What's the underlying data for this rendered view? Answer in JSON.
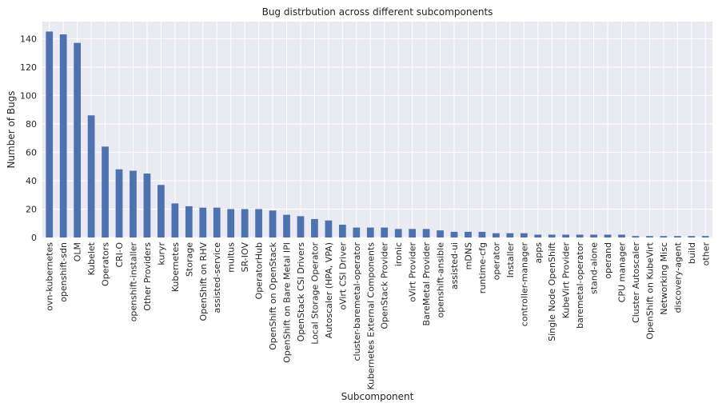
{
  "chart_data": {
    "type": "bar",
    "title": "Bug distrbution across different subcomponents",
    "xlabel": "Subcomponent",
    "ylabel": "Number of Bugs",
    "ylim": [
      0,
      152
    ],
    "yticks": [
      0,
      20,
      40,
      60,
      80,
      100,
      120,
      140
    ],
    "grid": true,
    "bar_color": "#4c72b0",
    "background_color": "#eaeaf2",
    "categories": [
      "ovn-kubernetes",
      "openshift-sdn",
      "OLM",
      "Kubelet",
      "Operators",
      "CRI-O",
      "openshift-installer",
      "Other Providers",
      "kuryr",
      "Kubernetes",
      "Storage",
      "OpenShift on RHV",
      "assisted-service",
      "multus",
      "SR-IOV",
      "OperatorHub",
      "OpenShift on OpenStack",
      "OpenShift on Bare Metal IPI",
      "OpenStack CSI Drivers",
      "Local Storage Operator",
      "Autoscaler (HPA, VPA)",
      "oVirt CSI Driver",
      "cluster-baremetal-operator",
      "Kubernetes External Components",
      "OpenStack Provider",
      "ironic",
      "oVirt Provider",
      "BareMetal Provider",
      "openshift-ansible",
      "assisted-ui",
      "mDNS",
      "runtime-cfg",
      "operator",
      "Installer",
      "controller-manager",
      "apps",
      "Single Node OpenShift",
      "KubeVirt Provider",
      "baremetal-operator",
      "stand-alone",
      "operand",
      "CPU manager",
      "Cluster Autoscaler",
      "OpenShift on KubeVirt",
      "Networking Misc",
      "discovery-agent",
      "build",
      "other"
    ],
    "values": [
      145,
      143,
      137,
      86,
      64,
      48,
      47,
      45,
      37,
      24,
      22,
      21,
      21,
      20,
      20,
      20,
      19,
      16,
      15,
      13,
      12,
      9,
      7,
      7,
      7,
      6,
      6,
      6,
      5,
      4,
      4,
      4,
      3,
      3,
      3,
      2,
      2,
      2,
      2,
      2,
      2,
      2,
      1,
      1,
      1,
      1,
      1,
      1
    ]
  }
}
